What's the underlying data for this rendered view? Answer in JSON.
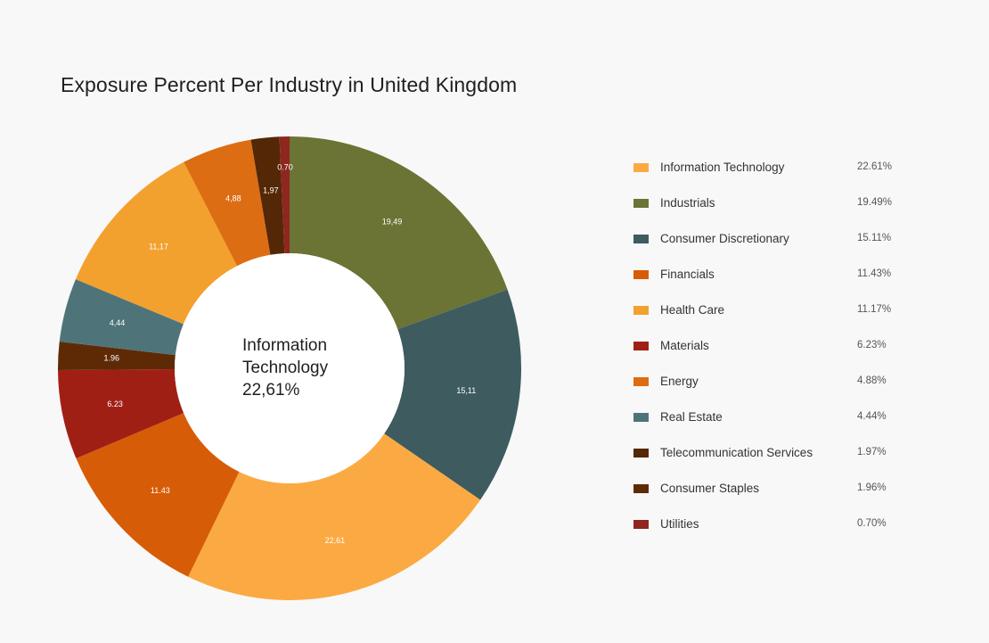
{
  "chart_data": {
    "type": "pie",
    "variant": "donut",
    "title": "Exposure Percent Per Industry in United Kingdom",
    "center": {
      "line1": "Information",
      "line2": "Technology",
      "value": "22,61%"
    },
    "legend_placement": "right",
    "slices": [
      {
        "name": "Industrials",
        "value": 19.49,
        "label": "19,49",
        "color": "#6b7434",
        "legend_value": "19.49%"
      },
      {
        "name": "Consumer Discretionary",
        "value": 15.11,
        "label": "15,11",
        "color": "#3e5b60",
        "legend_value": "15.11%"
      },
      {
        "name": "Information Technology",
        "value": 22.61,
        "label": "22,61",
        "color": "#fbaa43",
        "legend_value": "22.61%"
      },
      {
        "name": "Financials",
        "value": 11.43,
        "label": "11.43",
        "color": "#d75c07",
        "legend_value": "11.43%"
      },
      {
        "name": "Materials",
        "value": 6.23,
        "label": "6.23",
        "color": "#a01f15",
        "legend_value": "6.23%"
      },
      {
        "name": "Consumer Staples",
        "value": 1.96,
        "label": "1.96",
        "color": "#5e2a05",
        "legend_value": "1.96%"
      },
      {
        "name": "Real Estate",
        "value": 4.44,
        "label": "4,44",
        "color": "#4e7479",
        "legend_value": "4.44%"
      },
      {
        "name": "Health Care",
        "value": 11.17,
        "label": "11,17",
        "color": "#f3a12e",
        "legend_value": "11.17%"
      },
      {
        "name": "Energy",
        "value": 4.88,
        "label": "4,88",
        "color": "#dd6d13",
        "legend_value": "4.88%"
      },
      {
        "name": "Telecommunication Services",
        "value": 1.97,
        "label": "1,97",
        "color": "#542706",
        "legend_value": "1.97%"
      },
      {
        "name": "Utilities",
        "value": 0.7,
        "label": "0.70",
        "color": "#8f2620",
        "legend_value": "0.70%"
      }
    ],
    "legend_order": [
      "Information Technology",
      "Industrials",
      "Consumer Discretionary",
      "Financials",
      "Health Care",
      "Materials",
      "Energy",
      "Real Estate",
      "Telecommunication Services",
      "Consumer Staples",
      "Utilities"
    ]
  }
}
